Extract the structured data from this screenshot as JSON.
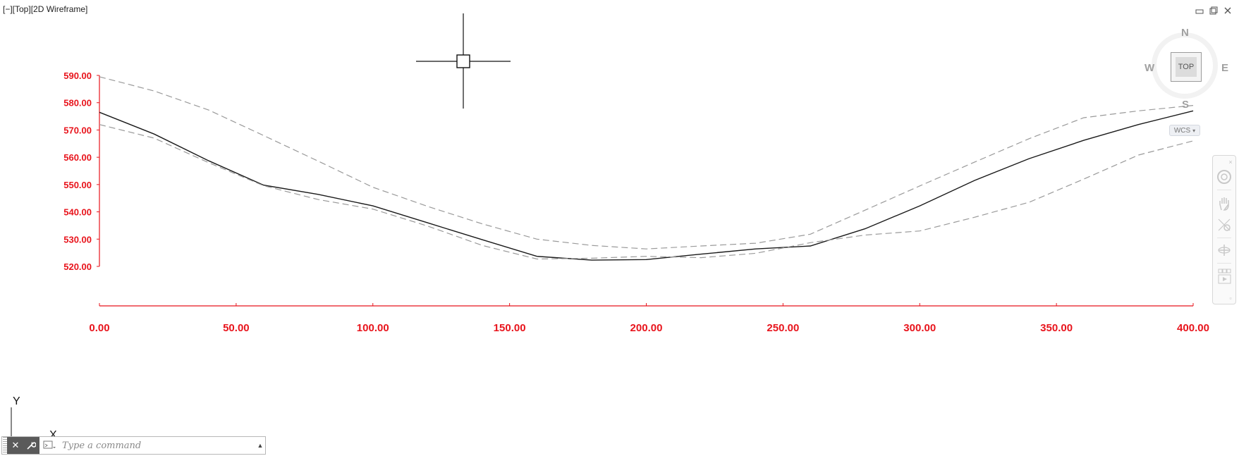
{
  "viewport": {
    "label": "[−][Top][2D Wireframe]"
  },
  "window_controls": {
    "minimize_icon": "minimize-icon",
    "restore_icon": "restore-icon",
    "close_icon": "close-icon"
  },
  "chart_data": {
    "type": "line",
    "title": "",
    "xlabel": "",
    "ylabel": "",
    "xlim": [
      0,
      400
    ],
    "ylim": [
      520,
      590
    ],
    "x_ticks": [
      "0.00",
      "50.00",
      "100.00",
      "150.00",
      "200.00",
      "250.00",
      "300.00",
      "350.00",
      "400.00"
    ],
    "x_tick_values": [
      0,
      50,
      100,
      150,
      200,
      250,
      300,
      350,
      400
    ],
    "y_ticks": [
      "590.00",
      "580.00",
      "570.00",
      "560.00",
      "550.00",
      "540.00",
      "530.00",
      "520.00"
    ],
    "y_tick_values": [
      590,
      580,
      570,
      560,
      550,
      540,
      530,
      520
    ],
    "axis_color": "#e8141c",
    "grid": false,
    "series": [
      {
        "style": "solid",
        "color": "#1a1a1a",
        "x": [
          0,
          20,
          40,
          60,
          80,
          100,
          120,
          140,
          160,
          180,
          200,
          220,
          240,
          260,
          280,
          300,
          320,
          340,
          360,
          380,
          400
        ],
        "y": [
          576.5,
          568.5,
          558.7,
          549.8,
          546.4,
          542.2,
          536.0,
          529.8,
          523.7,
          522.3,
          522.5,
          524.5,
          526.4,
          527.5,
          533.8,
          542.2,
          551.5,
          559.5,
          566.2,
          572.0,
          577.0
        ]
      },
      {
        "style": "dashed",
        "color": "#9a9a9a",
        "x": [
          0,
          20,
          40,
          60,
          80,
          100,
          120,
          140,
          160,
          180,
          200,
          220,
          240,
          260,
          280,
          300,
          320,
          340,
          360,
          380,
          400
        ],
        "y": [
          589.5,
          584.3,
          577.3,
          568.0,
          558.6,
          549.0,
          542.0,
          535.6,
          530.0,
          527.7,
          526.4,
          527.5,
          528.5,
          531.8,
          540.6,
          549.5,
          558.2,
          566.8,
          574.5,
          577.0,
          579.0
        ]
      },
      {
        "style": "dashed",
        "color": "#9a9a9a",
        "x": [
          0,
          20,
          40,
          60,
          80,
          100,
          120,
          140,
          160,
          180,
          200,
          220,
          240,
          260,
          280,
          300,
          320,
          340,
          360,
          380,
          400
        ],
        "y": [
          572.0,
          567.0,
          558.0,
          549.6,
          544.5,
          541.0,
          534.8,
          527.7,
          522.7,
          523.0,
          523.7,
          523.2,
          524.8,
          528.7,
          531.5,
          533.0,
          538.0,
          543.5,
          552.0,
          560.8,
          566.0
        ]
      }
    ]
  },
  "crosshair": {
    "icon": "crosshair-cursor-icon"
  },
  "viewcube": {
    "north": "N",
    "south": "S",
    "east": "E",
    "west": "W",
    "face": "TOP",
    "wcs_label": "WCS"
  },
  "navbar": {
    "icons": [
      "steering-wheel-icon",
      "pan-hand-icon",
      "zoom-icon",
      "orbit-icon",
      "showmotion-icon"
    ]
  },
  "ucs": {
    "y_label": "Y",
    "x_label": "X"
  },
  "command_line": {
    "placeholder": "Type a command"
  }
}
